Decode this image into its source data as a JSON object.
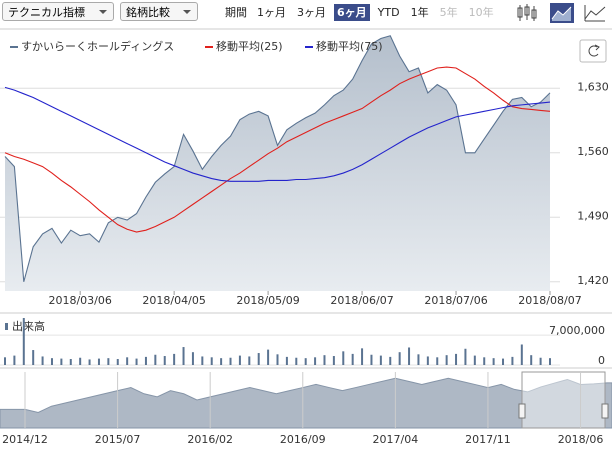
{
  "toolbar": {
    "indicator": "テクニカル指標",
    "compare": "銘柄比較",
    "period": "期間",
    "ranges": [
      "1ヶ月",
      "3ヶ月",
      "6ヶ月",
      "YTD",
      "1年",
      "5年",
      "10年"
    ],
    "selected": "6ヶ月",
    "disabled": [
      "5年",
      "10年"
    ]
  },
  "chart_data": [
    {
      "type": "line",
      "x": [
        "2018/02/13",
        "2018/02/15",
        "2018/02/19",
        "2018/02/21",
        "2018/02/23",
        "2018/02/27",
        "2018/03/01",
        "2018/03/02",
        "2018/03/06",
        "2018/03/08",
        "2018/03/12",
        "2018/03/14",
        "2018/03/16",
        "2018/03/20",
        "2018/03/23",
        "2018/03/27",
        "2018/03/29",
        "2018/04/03",
        "2018/04/05",
        "2018/04/09",
        "2018/04/11",
        "2018/04/13",
        "2018/04/17",
        "2018/04/19",
        "2018/04/23",
        "2018/04/25",
        "2018/05/01",
        "2018/05/07",
        "2018/05/09",
        "2018/05/11",
        "2018/05/15",
        "2018/05/17",
        "2018/05/21",
        "2018/05/23",
        "2018/05/25",
        "2018/05/29",
        "2018/05/31",
        "2018/06/04",
        "2018/06/07",
        "2018/06/11",
        "2018/06/13",
        "2018/06/15",
        "2018/06/19",
        "2018/06/21",
        "2018/06/25",
        "2018/06/27",
        "2018/06/29",
        "2018/07/03",
        "2018/07/06",
        "2018/07/10",
        "2018/07/12",
        "2018/07/17",
        "2018/07/19",
        "2018/07/23",
        "2018/07/25",
        "2018/07/27",
        "2018/07/31",
        "2018/08/02",
        "2018/08/07"
      ],
      "xticks": [
        "2018/03/06",
        "2018/04/05",
        "2018/05/09",
        "2018/06/07",
        "2018/07/06",
        "2018/08/07"
      ],
      "series": [
        {
          "name": "すかいらーくホールディングス",
          "color": "#5a7391",
          "area": true,
          "values": [
            1556,
            1545,
            1420,
            1458,
            1472,
            1478,
            1462,
            1476,
            1470,
            1472,
            1463,
            1484,
            1490,
            1487,
            1494,
            1512,
            1528,
            1537,
            1545,
            1580,
            1562,
            1542,
            1556,
            1568,
            1578,
            1596,
            1602,
            1605,
            1600,
            1568,
            1585,
            1592,
            1598,
            1603,
            1612,
            1622,
            1628,
            1640,
            1660,
            1678,
            1684,
            1687,
            1665,
            1648,
            1652,
            1625,
            1634,
            1628,
            1612,
            1560,
            1560,
            1575,
            1590,
            1605,
            1618,
            1620,
            1610,
            1615,
            1625
          ]
        },
        {
          "name": "移動平均(25)",
          "color": "#e0201c",
          "values": [
            1560,
            1556,
            1553,
            1549,
            1545,
            1538,
            1530,
            1523,
            1515,
            1507,
            1498,
            1490,
            1482,
            1477,
            1474,
            1476,
            1480,
            1485,
            1490,
            1497,
            1504,
            1511,
            1518,
            1525,
            1532,
            1538,
            1545,
            1552,
            1559,
            1565,
            1572,
            1577,
            1582,
            1587,
            1592,
            1596,
            1600,
            1604,
            1608,
            1615,
            1622,
            1628,
            1635,
            1640,
            1644,
            1648,
            1652,
            1653,
            1652,
            1646,
            1640,
            1632,
            1625,
            1617,
            1610,
            1608,
            1607,
            1606,
            1605
          ]
        },
        {
          "name": "移動平均(75)",
          "color": "#2424cc",
          "values": [
            1631,
            1628,
            1624,
            1620,
            1615,
            1610,
            1605,
            1600,
            1595,
            1590,
            1585,
            1580,
            1575,
            1570,
            1565,
            1560,
            1555,
            1550,
            1546,
            1542,
            1538,
            1535,
            1532,
            1530,
            1529,
            1529,
            1529,
            1529,
            1530,
            1530,
            1530,
            1531,
            1531,
            1532,
            1533,
            1535,
            1538,
            1542,
            1547,
            1553,
            1559,
            1565,
            1571,
            1577,
            1582,
            1587,
            1591,
            1595,
            1599,
            1601,
            1603,
            1605,
            1607,
            1609,
            1611,
            1612,
            1613,
            1614,
            1615
          ]
        }
      ],
      "ylim": [
        1410,
        1690
      ],
      "yticks": [
        {
          "value": 1420,
          "label": "1,420"
        },
        {
          "value": 1490,
          "label": "1,490"
        },
        {
          "value": 1560,
          "label": "1,560"
        },
        {
          "value": 1630,
          "label": "1,630"
        }
      ],
      "grid": true
    },
    {
      "type": "bar",
      "title": "出来高",
      "color": "#5a7391",
      "values": [
        1800000,
        2200000,
        11000000,
        3500000,
        2000000,
        1600000,
        1500000,
        1400000,
        1700000,
        1300000,
        1500000,
        1600000,
        1400000,
        1800000,
        1500000,
        1900000,
        2400000,
        2100000,
        2600000,
        4200000,
        3000000,
        2000000,
        1800000,
        1600000,
        1700000,
        2200000,
        2000000,
        2800000,
        3600000,
        2500000,
        1900000,
        1700000,
        1600000,
        1800000,
        2300000,
        2100000,
        3200000,
        2600000,
        3900000,
        2400000,
        2200000,
        1900000,
        3000000,
        4100000,
        2500000,
        2000000,
        1800000,
        2300000,
        2600000,
        3800000,
        2200000,
        1800000,
        1600000,
        1500000,
        1900000,
        4800000,
        2300000,
        1700000,
        1600000
      ],
      "ylim": [
        0,
        11000000
      ],
      "yticks": [
        0,
        {
          "value": 7000000,
          "label": "7,000,000"
        }
      ]
    },
    {
      "type": "area",
      "color": "#8695a8",
      "x": [
        "2014/12",
        "2015/01",
        "2015/02",
        "2015/03",
        "2015/04",
        "2015/05",
        "2015/06",
        "2015/07",
        "2015/08",
        "2015/09",
        "2015/10",
        "2015/11",
        "2015/12",
        "2016/01",
        "2016/02",
        "2016/03",
        "2016/04",
        "2016/05",
        "2016/06",
        "2016/07",
        "2016/08",
        "2016/09",
        "2016/10",
        "2016/11",
        "2016/12",
        "2017/01",
        "2017/02",
        "2017/03",
        "2017/04",
        "2017/05",
        "2017/06",
        "2017/07",
        "2017/08",
        "2017/09",
        "2017/10",
        "2017/11",
        "2017/12",
        "2018/01",
        "2018/02",
        "2018/03",
        "2018/04",
        "2018/05",
        "2018/06",
        "2018/07",
        "2018/08"
      ],
      "xticks": [
        "2014/12",
        "2015/07",
        "2016/02",
        "2016/09",
        "2017/04",
        "2017/11",
        "2018/06"
      ],
      "values": [
        1200,
        1150,
        1250,
        1300,
        1350,
        1400,
        1450,
        1500,
        1550,
        1450,
        1400,
        1500,
        1450,
        1350,
        1400,
        1450,
        1500,
        1550,
        1500,
        1450,
        1500,
        1550,
        1600,
        1550,
        1500,
        1550,
        1600,
        1650,
        1700,
        1650,
        1600,
        1650,
        1700,
        1650,
        1600,
        1550,
        1600,
        1520,
        1480,
        1560,
        1620,
        1680,
        1600,
        1610,
        1625
      ],
      "ylim": [
        900,
        1800
      ]
    }
  ]
}
